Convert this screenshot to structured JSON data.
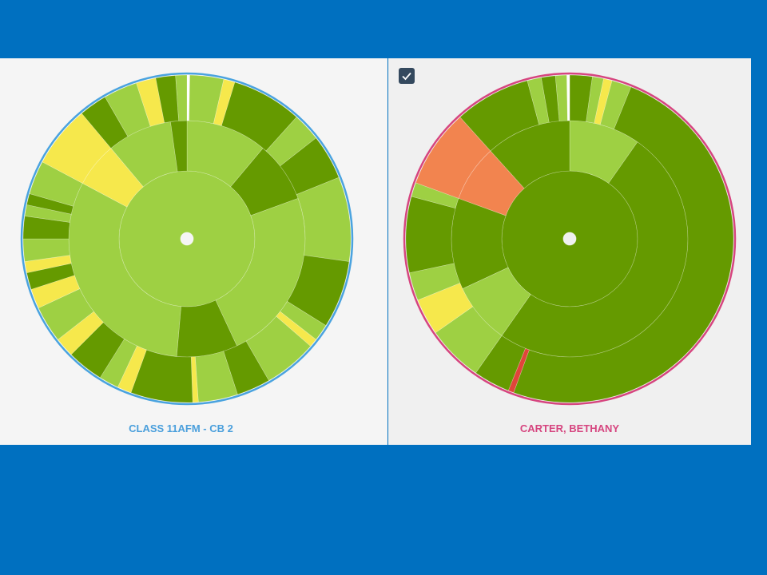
{
  "panels": [
    {
      "label": "CLASS 11AFM - CB 2"
    },
    {
      "label": "CARTER, BETHANY"
    }
  ]
}
